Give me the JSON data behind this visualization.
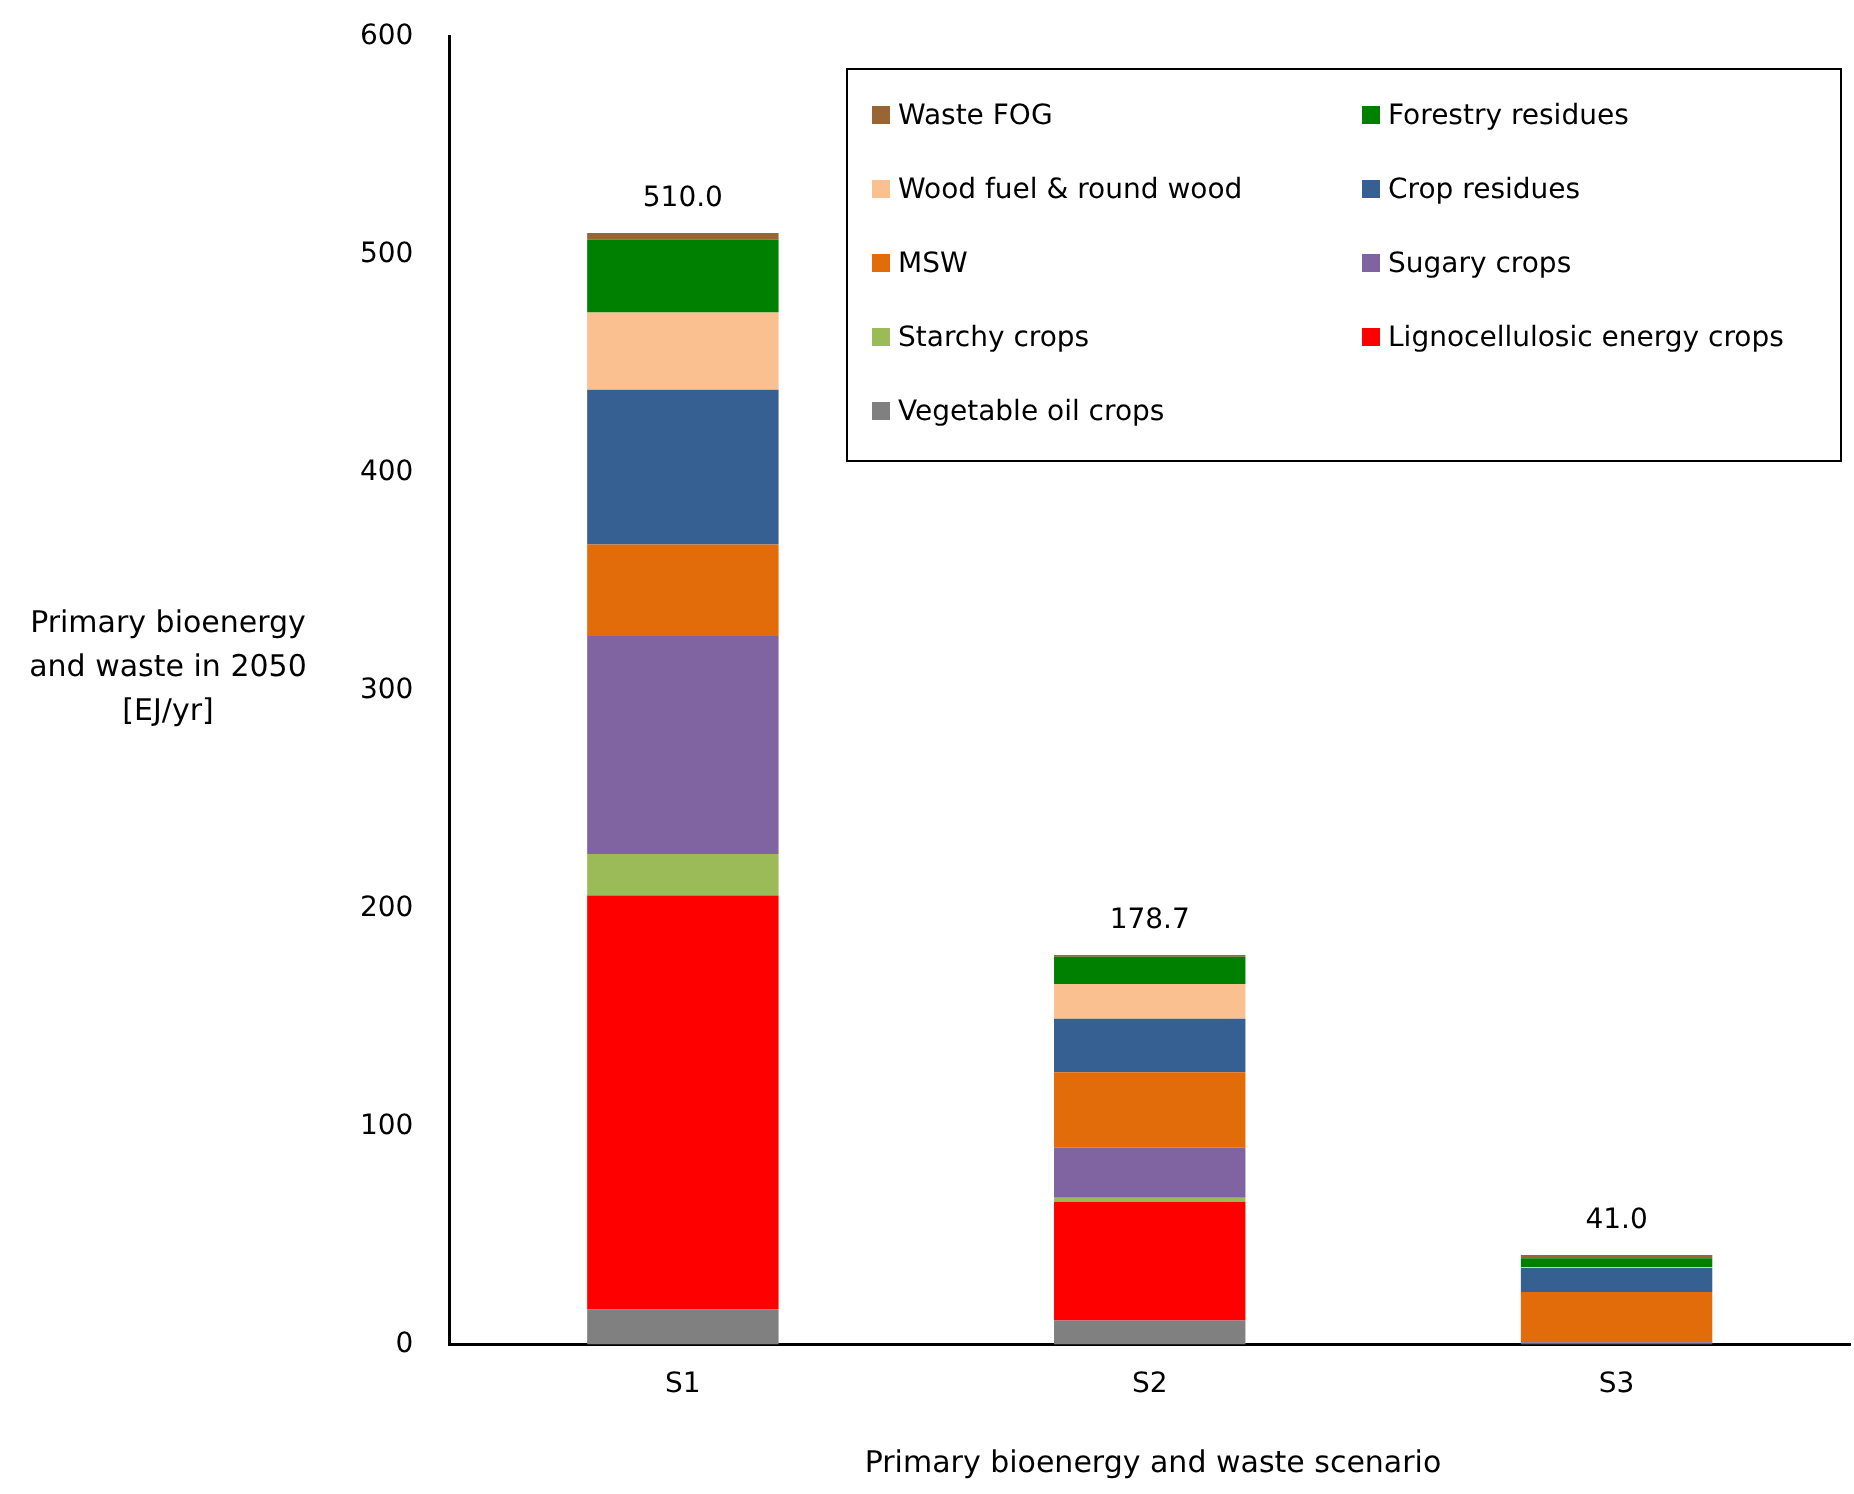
{
  "chart_data": {
    "type": "bar",
    "stacked": true,
    "xlabel": "Primary bioenergy and waste scenario",
    "ylabel": "Primary bioenergy and waste in 2050 [EJ/yr]",
    "categories": [
      "S1",
      "S2",
      "S3"
    ],
    "ylim": [
      0,
      600
    ],
    "yticks": [
      0,
      100,
      200,
      300,
      400,
      500,
      600
    ],
    "grid": false,
    "legend": "top right",
    "totals": [
      "510.0",
      "178.7",
      "41.0"
    ],
    "series": [
      {
        "name": "Vegetable oil crops",
        "color": "#808080",
        "values": [
          16,
          11,
          0.5
        ]
      },
      {
        "name": "Lignocellulosic energy crops",
        "color": "#ff0000",
        "values": [
          190,
          54.5,
          0
        ]
      },
      {
        "name": "Starchy crops",
        "color": "#9bbb59",
        "values": [
          19,
          1.8,
          0
        ]
      },
      {
        "name": "Sugary crops",
        "color": "#8064a2",
        "values": [
          100,
          23,
          0.5
        ]
      },
      {
        "name": "MSW",
        "color": "#e36c0a",
        "values": [
          42,
          34.6,
          23
        ]
      },
      {
        "name": "Crop residues",
        "color": "#366092",
        "values": [
          71,
          24.5,
          11
        ]
      },
      {
        "name": "Wood fuel & round wood",
        "color": "#fac090",
        "values": [
          35.5,
          16,
          0.5
        ]
      },
      {
        "name": "Forestry residues",
        "color": "#008000",
        "values": [
          33.5,
          12.5,
          4
        ]
      },
      {
        "name": "Waste FOG",
        "color": "#996633",
        "values": [
          3,
          0.8,
          1.5
        ]
      }
    ]
  }
}
